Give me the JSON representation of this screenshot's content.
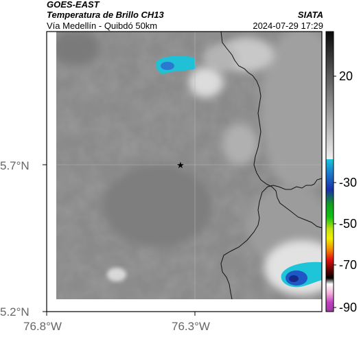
{
  "header": {
    "satellite": "GOES-EAST",
    "product": "Temperatura de Brillo CH13",
    "org": "SIATA",
    "region": "Vía Medellín - Quibdó 50km",
    "datetime": "2024-07-29 17:29"
  },
  "map": {
    "lat_ticks": [
      {
        "label": "5.7°N",
        "value": 5.7
      },
      {
        "label": "5.2°N",
        "value": 5.2
      }
    ],
    "lon_ticks": [
      {
        "label": "76.8°W",
        "value": -76.8
      },
      {
        "label": "76.3°W",
        "value": -76.3
      }
    ],
    "marker": {
      "name": "star-marker",
      "lon": -76.32,
      "lat": 5.7
    }
  },
  "colorbar": {
    "labels": [
      "20",
      "-30",
      "-50",
      "-70",
      "-90"
    ],
    "unit_colors": {
      "warm_top": "#0a0a0a",
      "warm_bottom": "#f0f0f0",
      "cyan": "#19c6d9",
      "blue": "#1a2fa8",
      "green": "#12c212",
      "yellow": "#f0f000",
      "red": "#e01010",
      "dark_red": "#4a0000",
      "magenta": "#c040c0"
    }
  }
}
